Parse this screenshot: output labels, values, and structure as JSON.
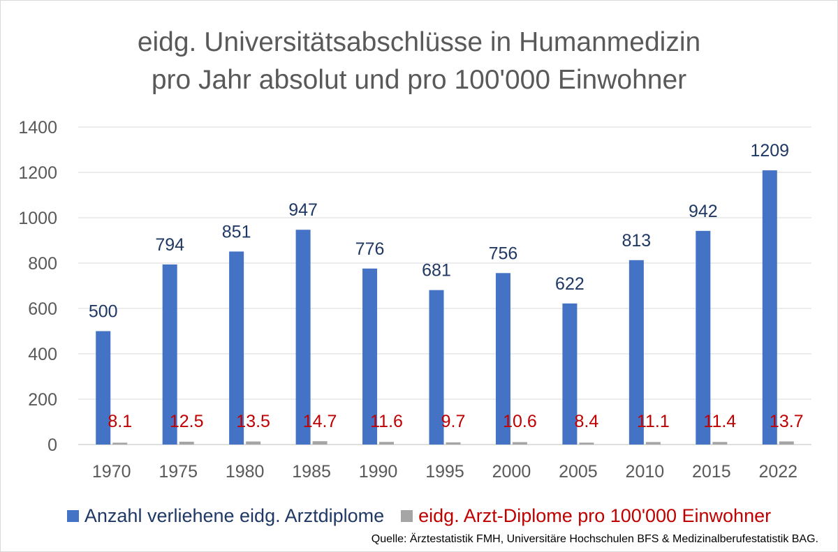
{
  "chart_data": {
    "type": "bar",
    "title_line1": "eidg. Universitätsabschlüsse in Humanmedizin",
    "title_line2": "pro Jahr absolut und pro 100'000 Einwohner",
    "categories": [
      "1970",
      "1975",
      "1980",
      "1985",
      "1990",
      "1995",
      "2000",
      "2005",
      "2010",
      "2015",
      "2022"
    ],
    "series": [
      {
        "name": "Anzahl verliehene eidg. Arztdiplome",
        "color": "#4472c4",
        "label_color": "#1f3864",
        "values": [
          500,
          794,
          851,
          947,
          776,
          681,
          756,
          622,
          813,
          942,
          1209
        ]
      },
      {
        "name": "eidg. Arzt-Diplome pro 100'000 Einwohner",
        "color": "#a5a5a5",
        "label_color": "#c00000",
        "values": [
          8.1,
          12.5,
          13.5,
          14.7,
          11.6,
          9.7,
          10.6,
          8.4,
          11.1,
          11.4,
          13.7
        ]
      }
    ],
    "ylim": [
      0,
      1400
    ],
    "yticks": [
      0,
      200,
      400,
      600,
      800,
      1000,
      1200,
      1400
    ],
    "grid": true,
    "legend_position": "bottom",
    "source": "Quelle: Ärztestatistik FMH, Universitäre Hochschulen BFS & Medizinalberufestatistik BAG."
  }
}
